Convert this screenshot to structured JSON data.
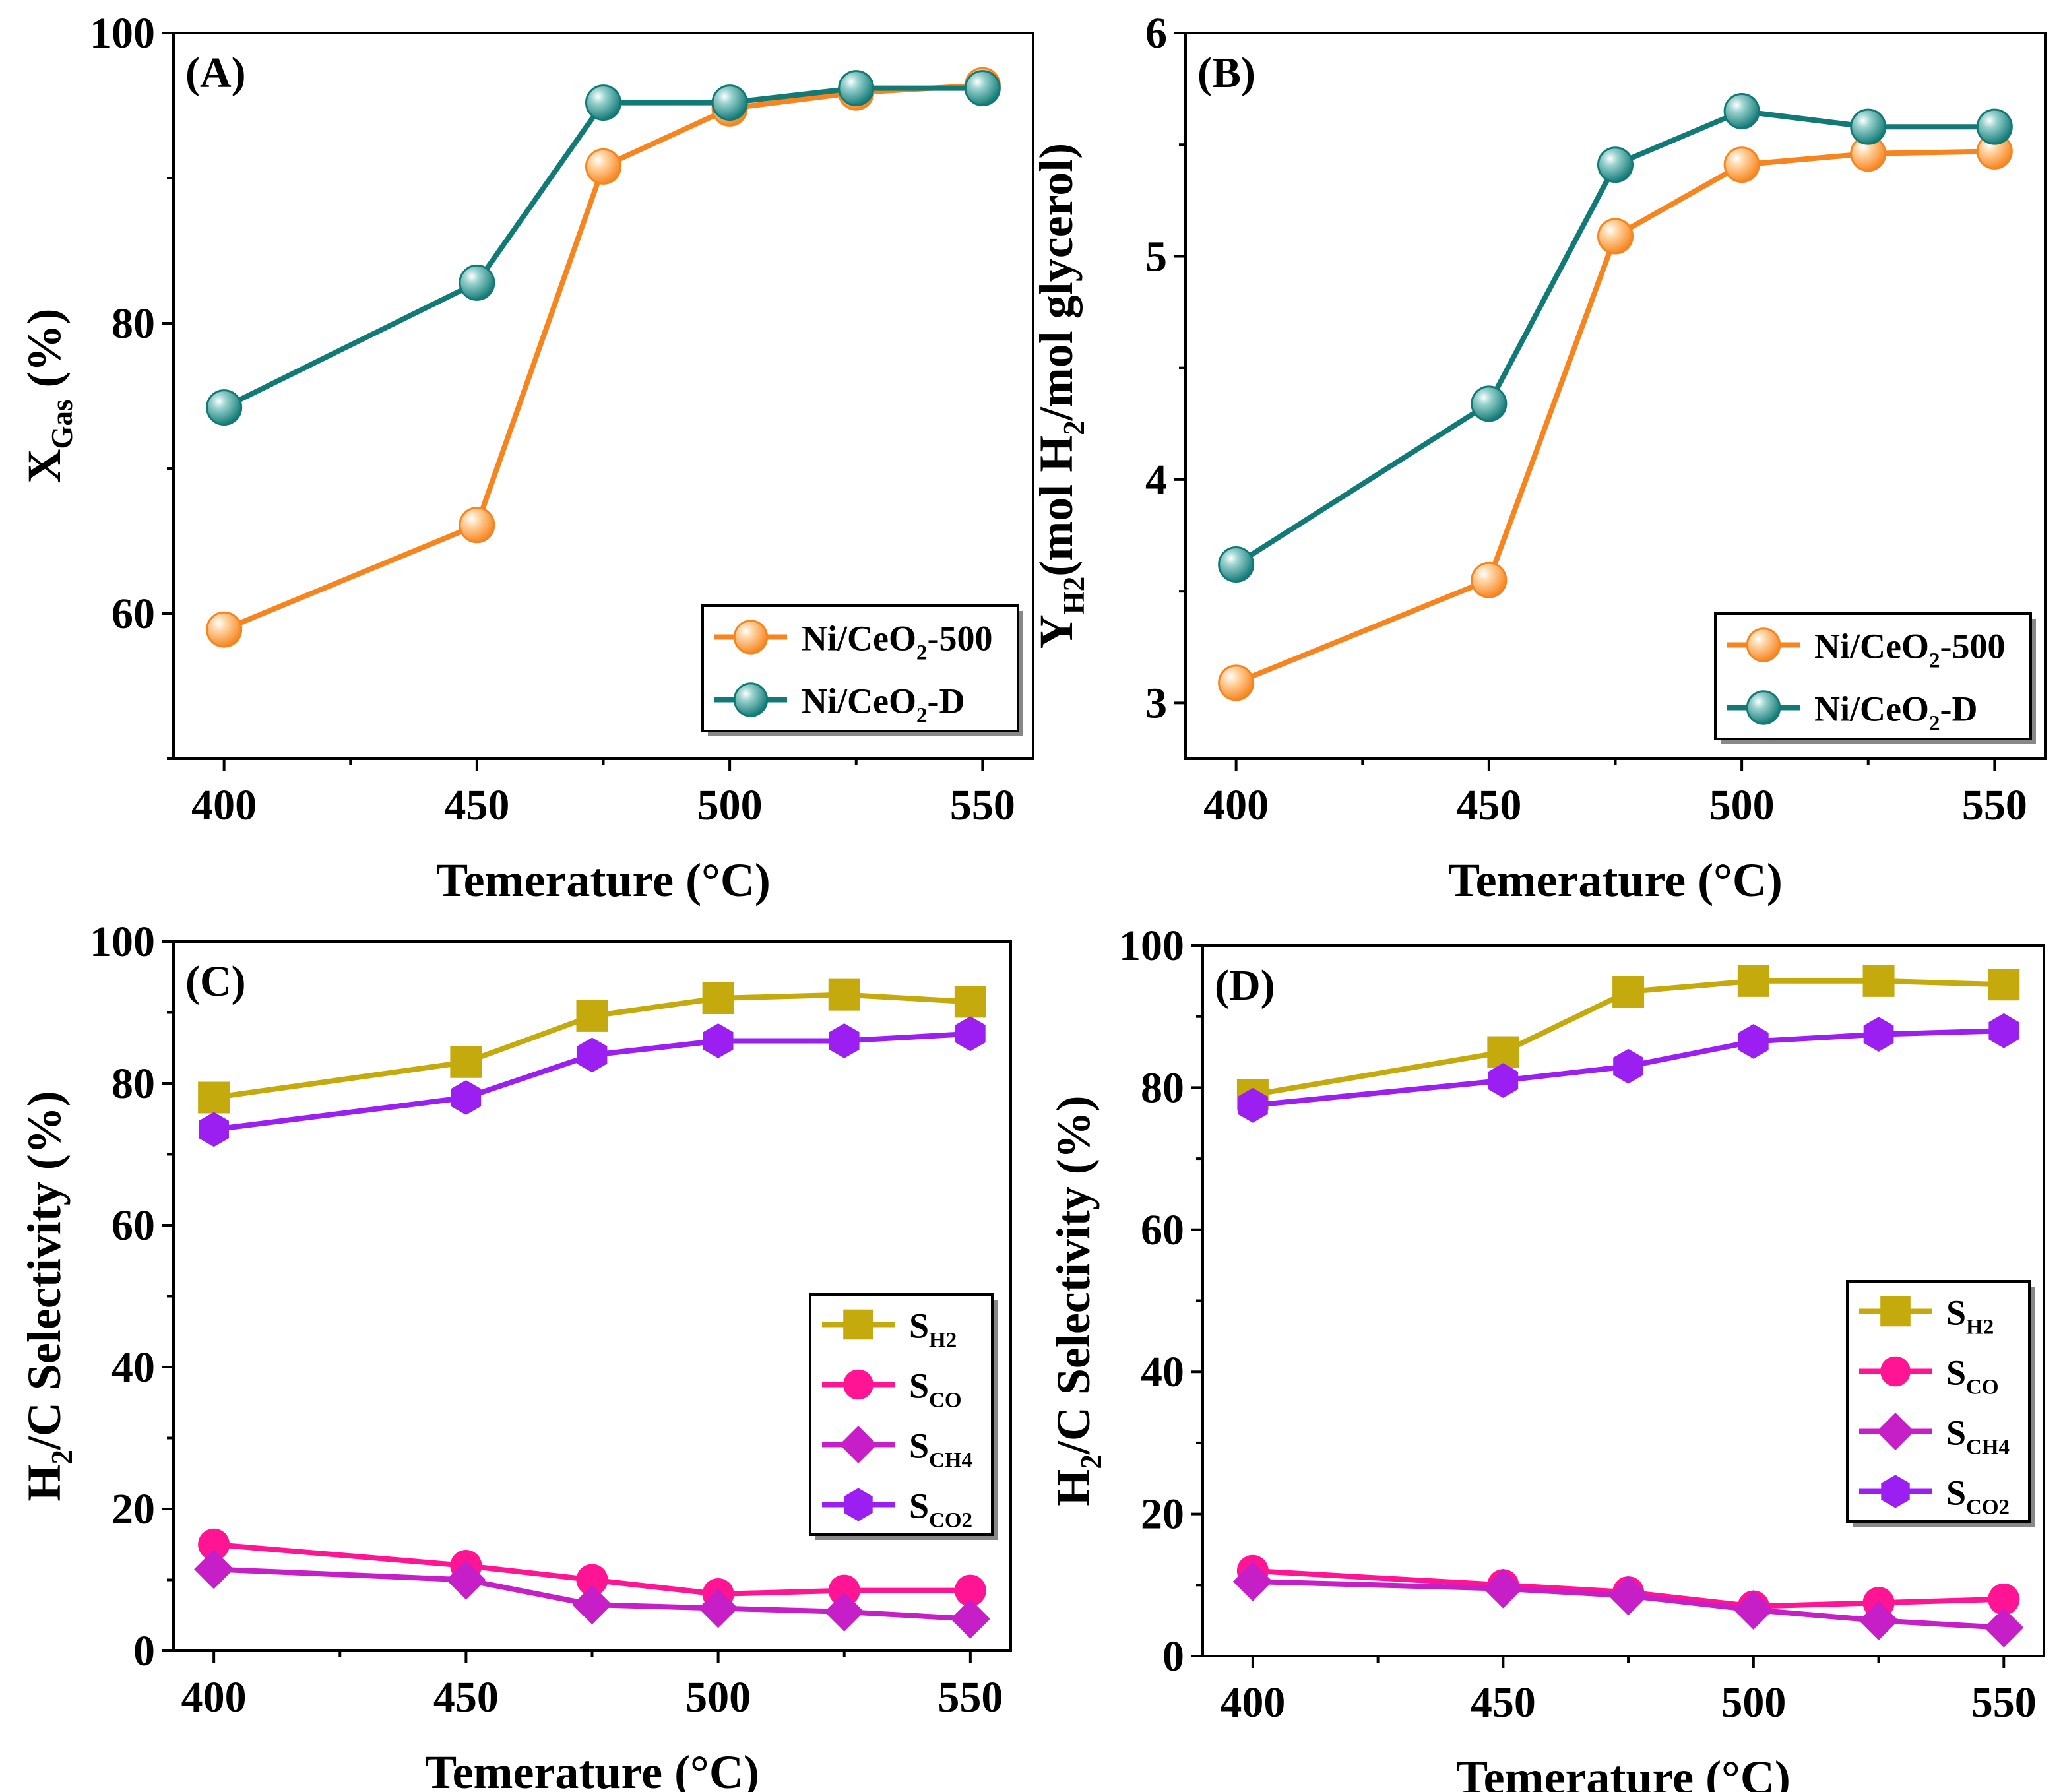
{
  "figure": {
    "xlabel": "Temerature (°C)",
    "x_ticks": [
      "400",
      "450",
      "500",
      "550"
    ]
  },
  "chart_data": [
    {
      "type": "line",
      "panel_label": "(A)",
      "ylabel_parts": {
        "main": "X",
        "sub": "Gas",
        "rest": " (%)"
      },
      "xlabel": "Temerature (°C)",
      "xlim": [
        390,
        560
      ],
      "ylim": [
        50,
        100
      ],
      "x_ticks": [
        400,
        450,
        500,
        550
      ],
      "y_ticks": [
        60,
        80,
        100
      ],
      "y_tick_labels": [
        "60",
        "80",
        "100"
      ],
      "legend_position": "bottom-right",
      "series": [
        {
          "name": "Ni/CeO2-500",
          "legend_parts": {
            "main": "Ni/CeO",
            "sub": "2",
            "rest": "-500"
          },
          "color": "#f7851f",
          "marker": "sphere",
          "x": [
            400,
            450,
            475,
            500,
            525,
            550
          ],
          "y": [
            58.9,
            66.1,
            90.8,
            94.8,
            95.9,
            96.4
          ]
        },
        {
          "name": "Ni/CeO2-D",
          "legend_parts": {
            "main": "Ni/CeO",
            "sub": "2",
            "rest": "-D"
          },
          "color": "#127a76",
          "marker": "sphere",
          "x": [
            400,
            450,
            475,
            500,
            525,
            550
          ],
          "y": [
            74.2,
            82.8,
            95.2,
            95.2,
            96.2,
            96.2
          ]
        }
      ]
    },
    {
      "type": "line",
      "panel_label": "(B)",
      "ylabel_parts": {
        "main": "Y",
        "sub": "H2",
        "rest": "(mol H",
        "sub2": "2",
        "rest2": "/mol glycerol)"
      },
      "xlabel": "Temerature (°C)",
      "xlim": [
        390,
        560
      ],
      "ylim": [
        2.75,
        6
      ],
      "x_ticks": [
        400,
        450,
        500,
        550
      ],
      "y_ticks": [
        3,
        4,
        5,
        6
      ],
      "y_tick_labels": [
        "3",
        "4",
        "5",
        "6"
      ],
      "legend_position": "bottom-right",
      "series": [
        {
          "name": "Ni/CeO2-500",
          "legend_parts": {
            "main": "Ni/CeO",
            "sub": "2",
            "rest": "-500"
          },
          "color": "#f7851f",
          "marker": "sphere",
          "x": [
            400,
            450,
            475,
            500,
            525,
            550
          ],
          "y": [
            3.09,
            3.55,
            5.09,
            5.41,
            5.46,
            5.47
          ]
        },
        {
          "name": "Ni/CeO2-D",
          "legend_parts": {
            "main": "Ni/CeO",
            "sub": "2",
            "rest": "-D"
          },
          "color": "#127a76",
          "marker": "sphere",
          "x": [
            400,
            450,
            475,
            500,
            525,
            550
          ],
          "y": [
            3.62,
            4.34,
            5.41,
            5.65,
            5.58,
            5.58
          ]
        }
      ]
    },
    {
      "type": "line",
      "panel_label": "(C)",
      "ylabel_parts": {
        "main": "H",
        "sub": "2",
        "rest": "/C Selectivity (%)"
      },
      "xlabel": "Temerature (°C)",
      "xlim": [
        392,
        558
      ],
      "ylim": [
        0,
        100
      ],
      "x_ticks": [
        400,
        450,
        500,
        550
      ],
      "y_ticks": [
        0,
        20,
        40,
        60,
        80,
        100
      ],
      "y_tick_labels": [
        "0",
        "20",
        "40",
        "60",
        "80",
        "100"
      ],
      "legend_position": "middle-right",
      "series": [
        {
          "name": "SH2",
          "legend_parts": {
            "main": "S",
            "sub": "H2",
            "rest": ""
          },
          "color": "#c4aa0c",
          "marker": "square",
          "x": [
            400,
            450,
            475,
            500,
            525,
            550
          ],
          "y": [
            78,
            83,
            89.5,
            92,
            92.5,
            91.5
          ]
        },
        {
          "name": "SCO",
          "legend_parts": {
            "main": "S",
            "sub": "CO",
            "rest": ""
          },
          "color": "#ff1493",
          "marker": "circle",
          "x": [
            400,
            450,
            475,
            500,
            525,
            550
          ],
          "y": [
            15,
            12,
            10,
            8,
            8.5,
            8.5
          ]
        },
        {
          "name": "SCH4",
          "legend_parts": {
            "main": "S",
            "sub": "CH4",
            "rest": ""
          },
          "color": "#c71fc7",
          "marker": "diamond",
          "x": [
            400,
            450,
            475,
            500,
            525,
            550
          ],
          "y": [
            11.5,
            10,
            6.5,
            6,
            5.5,
            4.5
          ]
        },
        {
          "name": "SCO2",
          "legend_parts": {
            "main": "S",
            "sub": "CO2",
            "rest": ""
          },
          "color": "#9b1ff0",
          "marker": "hexagon",
          "x": [
            400,
            450,
            475,
            500,
            525,
            550
          ],
          "y": [
            73.5,
            78,
            84,
            86,
            86,
            87
          ]
        }
      ]
    },
    {
      "type": "line",
      "panel_label": "(D)",
      "ylabel_parts": {
        "main": "H",
        "sub": "2",
        "rest": "/C Selectivity (%)"
      },
      "xlabel": "Temerature (°C)",
      "xlim": [
        390,
        558
      ],
      "ylim": [
        0,
        100
      ],
      "x_ticks": [
        400,
        450,
        500,
        550
      ],
      "y_ticks": [
        0,
        20,
        40,
        60,
        80,
        100
      ],
      "y_tick_labels": [
        "0",
        "20",
        "40",
        "60",
        "80",
        "100"
      ],
      "legend_position": "middle-right",
      "series": [
        {
          "name": "SH2",
          "legend_parts": {
            "main": "S",
            "sub": "H2",
            "rest": ""
          },
          "color": "#c4aa0c",
          "marker": "square",
          "x": [
            400,
            450,
            475,
            500,
            525,
            550
          ],
          "y": [
            79,
            85,
            93.5,
            95,
            95,
            94.5
          ]
        },
        {
          "name": "SCO",
          "legend_parts": {
            "main": "S",
            "sub": "CO",
            "rest": ""
          },
          "color": "#ff1493",
          "marker": "circle",
          "x": [
            400,
            450,
            475,
            500,
            525,
            550
          ],
          "y": [
            12,
            10,
            9,
            7,
            7.5,
            8
          ]
        },
        {
          "name": "SCH4",
          "legend_parts": {
            "main": "S",
            "sub": "CH4",
            "rest": ""
          },
          "color": "#c71fc7",
          "marker": "diamond",
          "x": [
            400,
            450,
            475,
            500,
            525,
            550
          ],
          "y": [
            10.5,
            9.5,
            8.5,
            6.5,
            5,
            4
          ]
        },
        {
          "name": "SCO2",
          "legend_parts": {
            "main": "S",
            "sub": "CO2",
            "rest": ""
          },
          "color": "#9b1ff0",
          "marker": "hexagon",
          "x": [
            400,
            450,
            475,
            500,
            525,
            550
          ],
          "y": [
            77.5,
            81,
            83,
            86.5,
            87.5,
            88
          ]
        }
      ]
    }
  ]
}
